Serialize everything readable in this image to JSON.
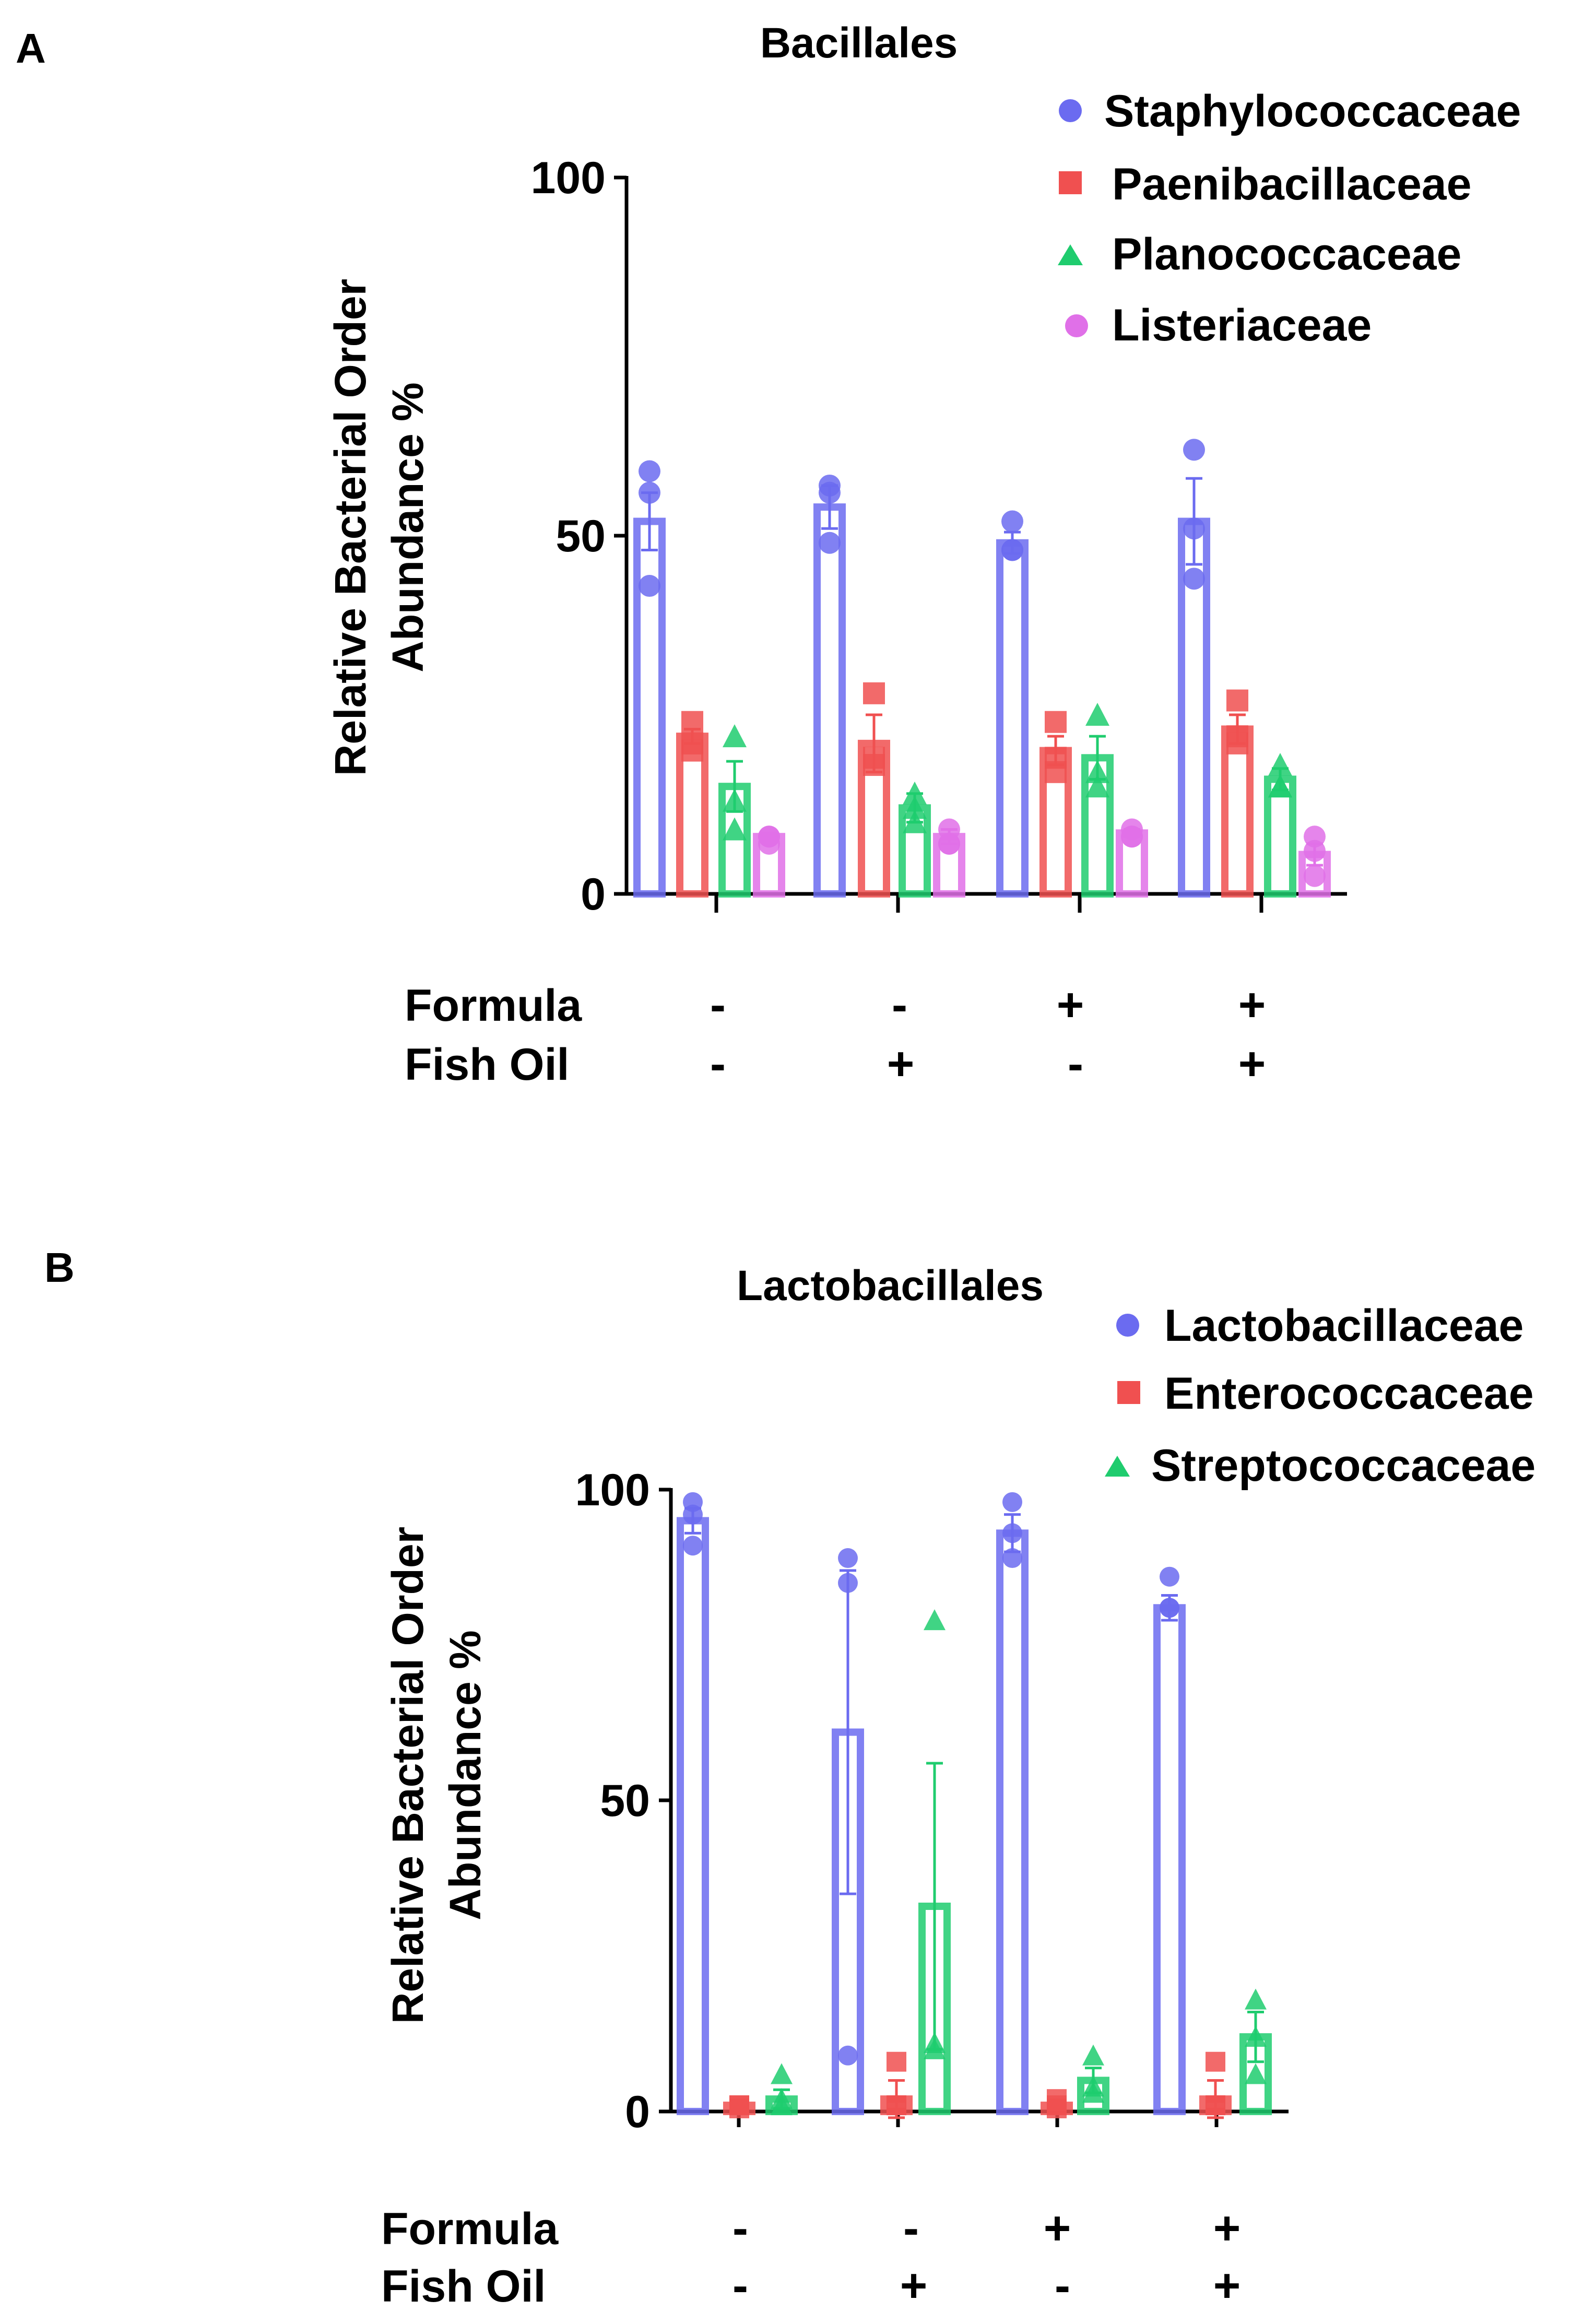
{
  "panels": [
    {
      "letter": "A",
      "chart_data": {
        "type": "bar",
        "title": "Bacillales",
        "ylabel": [
          "Relative Bacterial Order",
          "Abundance %"
        ],
        "xlabel": "",
        "ylim": [
          0,
          100
        ],
        "yticks": [
          "0",
          "50",
          "100"
        ],
        "groups": [
          "Formula - / Fish Oil -",
          "Formula - / Fish Oil +",
          "Formula + / Fish Oil -",
          "Formula + / Fish Oil +"
        ],
        "conditions": [
          {
            "label": "Formula",
            "signs": [
              "-",
              "-",
              "+",
              "+"
            ]
          },
          {
            "label": "Fish Oil",
            "signs": [
              "-",
              "+",
              "-",
              "+"
            ]
          }
        ],
        "series": [
          {
            "name": "Staphylococcaceae",
            "marker": "circle",
            "color": "#6b6bf0",
            "values": [
              52,
              54,
              49,
              52
            ],
            "errors": [
              4,
              3,
              1.5,
              6
            ],
            "points": [
              [
                59,
                56,
                43
              ],
              [
                57,
                56,
                49
              ],
              [
                52,
                48,
                48
              ],
              [
                62,
                51,
                44
              ]
            ]
          },
          {
            "name": "Paenibacillaceae",
            "marker": "square",
            "color": "#f05050",
            "values": [
              22,
              21,
              20,
              23
            ],
            "errors": [
              1,
              4,
              2,
              2
            ],
            "points": [
              [
                24,
                21,
                20
              ],
              [
                28,
                19,
                18
              ],
              [
                24,
                19,
                17
              ],
              [
                27,
                22,
                21
              ]
            ]
          },
          {
            "name": "Planococcaceae",
            "marker": "triangle",
            "color": "#1fcc6e",
            "values": [
              15,
              12,
              19,
              16
            ],
            "errors": [
              3.5,
              2,
              3,
              1.5
            ],
            "points": [
              [
                22,
                13,
                9
              ],
              [
                14,
                12,
                10
              ],
              [
                25,
                17,
                15
              ],
              [
                18,
                15,
                15
              ]
            ]
          },
          {
            "name": "Listeriaceae",
            "marker": "circle",
            "color": "#e070e8",
            "values": [
              8,
              8,
              8.5,
              5.5
            ],
            "errors": [
              0.5,
              1,
              0.5,
              1.5
            ],
            "points": [
              [
                8,
                8,
                7
              ],
              [
                9,
                7,
                7
              ],
              [
                9,
                8,
                8
              ],
              [
                8,
                6,
                2.5
              ]
            ]
          }
        ]
      }
    },
    {
      "letter": "B",
      "chart_data": {
        "type": "bar",
        "title": "Lactobacillales",
        "ylabel": [
          "Relative  Bacterial  Order",
          "Abundance %"
        ],
        "xlabel": "",
        "ylim": [
          0,
          100
        ],
        "yticks": [
          "0",
          "50",
          "100"
        ],
        "groups": [
          "Formula - / Fish Oil -",
          "Formula - / Fish Oil +",
          "Formula + / Fish Oil -",
          "Formula + / Fish Oil +"
        ],
        "conditions": [
          {
            "label": "Formula",
            "signs": [
              "-",
              "-",
              "+",
              "+"
            ]
          },
          {
            "label": "Fish Oil",
            "signs": [
              "-",
              "+",
              "-",
              "+"
            ]
          }
        ],
        "series": [
          {
            "name": "Lactobacillaceae",
            "marker": "circle",
            "color": "#6b6bf0",
            "values": [
              95,
              61,
              93,
              81
            ],
            "errors": [
              2,
              26,
              3,
              2
            ],
            "points": [
              [
                98,
                96,
                91
              ],
              [
                89,
                85,
                9
              ],
              [
                98,
                93,
                89
              ],
              [
                86,
                81,
                81
              ]
            ]
          },
          {
            "name": "Enterococcaceae",
            "marker": "square",
            "color": "#f05050",
            "values": [
              1,
              2,
              1,
              2
            ],
            "errors": [
              0.5,
              3,
              0.8,
              3
            ],
            "points": [
              [
                1,
                1,
                0.5
              ],
              [
                8,
                1,
                1
              ],
              [
                2,
                1,
                0.5
              ],
              [
                8,
                1,
                1
              ]
            ]
          },
          {
            "name": "Streptococcaceae",
            "marker": "triangle",
            "color": "#1fcc6e",
            "values": [
              2,
              33,
              5,
              12
            ],
            "errors": [
              1.5,
              23,
              2,
              4
            ],
            "points": [
              [
                6,
                2,
                1
              ],
              [
                79,
                11,
                10
              ],
              [
                9,
                4,
                3
              ],
              [
                18,
                12,
                6
              ]
            ]
          }
        ]
      }
    }
  ]
}
